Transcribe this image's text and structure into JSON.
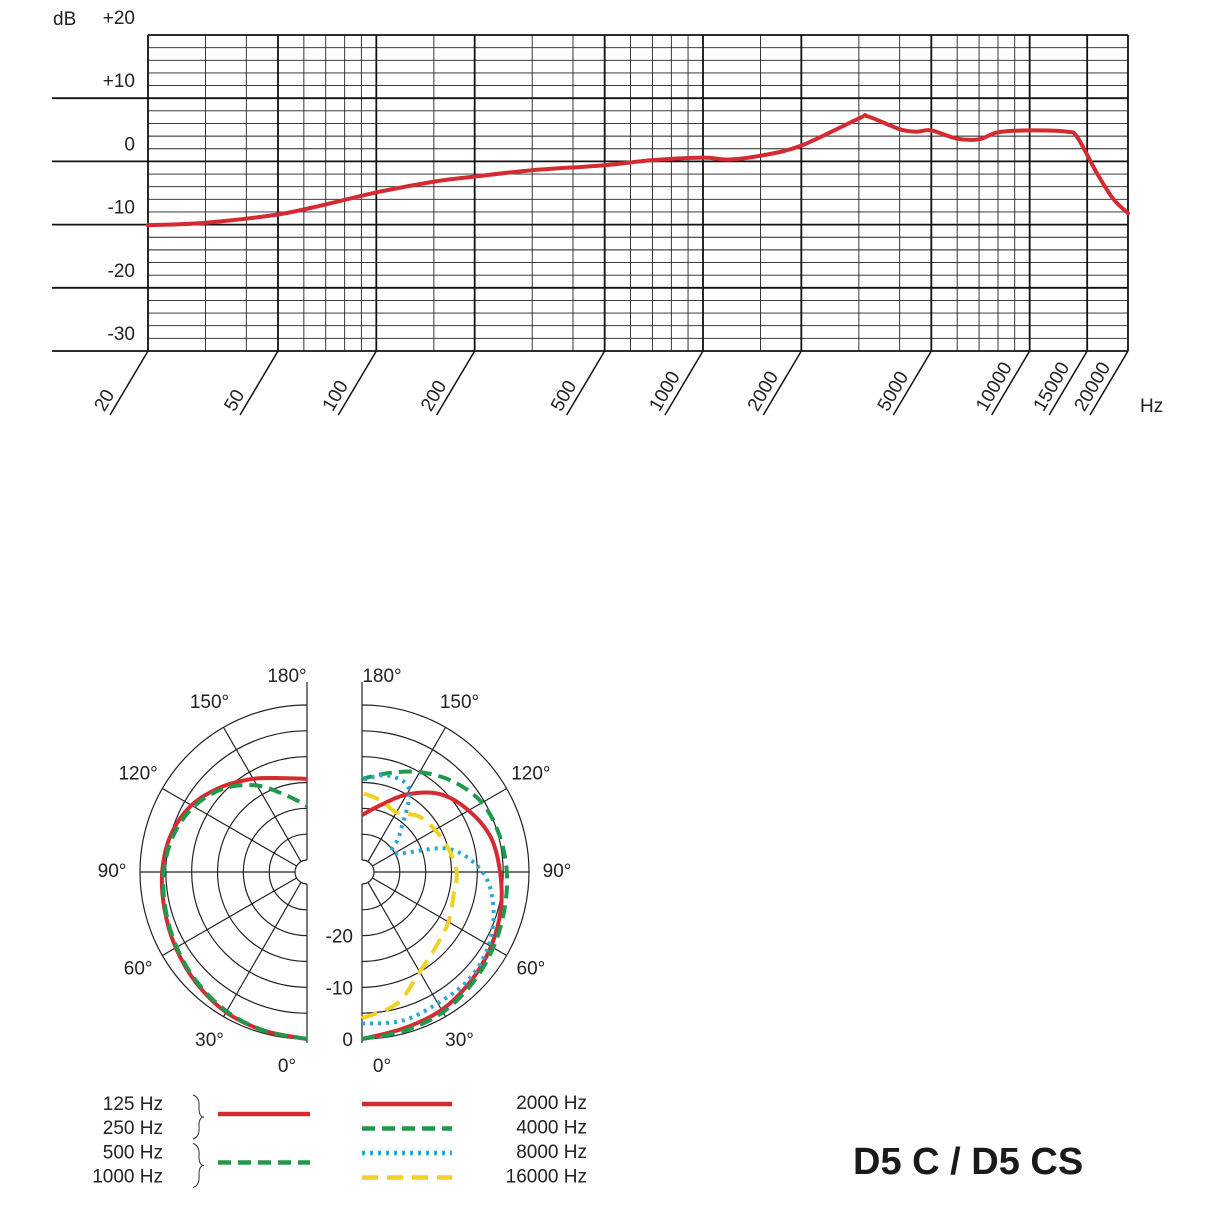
{
  "page": {
    "title": "D5 C / D5 CS"
  },
  "chart_data": [
    {
      "type": "line",
      "log_x": true,
      "ylabel": "dB",
      "xlabel": "Hz",
      "color": "#d42a32",
      "x": [
        20,
        30,
        50,
        70,
        100,
        150,
        200,
        300,
        500,
        700,
        1000,
        1200,
        1500,
        2000,
        3000,
        3200,
        4000,
        4500,
        5000,
        6000,
        7000,
        8000,
        10000,
        13000,
        14000,
        16000,
        18000,
        20000
      ],
      "values": [
        -10.1,
        -9.7,
        -8.4,
        -6.8,
        -4.9,
        -3.2,
        -2.4,
        -1.4,
        -0.6,
        0.2,
        0.6,
        0.3,
        0.9,
        2.5,
        6.8,
        7.1,
        5.1,
        4.7,
        4.9,
        3.6,
        3.5,
        4.6,
        4.9,
        4.7,
        3.8,
        -1.7,
        -5.9,
        -8.2
      ],
      "xlim": [
        20,
        20000
      ],
      "xticks": [
        20,
        50,
        100,
        200,
        500,
        1000,
        2000,
        5000,
        10000,
        15000,
        20000
      ],
      "xgrid_minor": [
        30,
        40,
        60,
        70,
        80,
        90,
        150,
        300,
        400,
        600,
        700,
        800,
        900,
        1500,
        3000,
        4000,
        6000,
        7000,
        8000,
        9000
      ],
      "ylim": [
        -30,
        20
      ],
      "yticks": [
        {
          "value": 20,
          "label": "+20"
        },
        {
          "value": 10,
          "label": "+10"
        },
        0,
        -10,
        -20,
        -30
      ],
      "ygrid_minor": [
        18,
        16,
        14,
        12,
        8,
        6,
        4,
        2,
        -2,
        -4,
        -6,
        -8,
        -12,
        -14,
        -16,
        -18,
        -22,
        -24,
        -26,
        -28
      ],
      "grid": true
    },
    {
      "type": "polar",
      "theta": [
        0,
        15,
        30,
        45,
        60,
        75,
        90,
        105,
        120,
        135,
        150,
        165,
        180
      ],
      "thetaticks": [
        {
          "value": 0,
          "label": "0°"
        },
        {
          "value": 30,
          "label": "30°"
        },
        {
          "value": 60,
          "label": "60°"
        },
        {
          "value": 90,
          "label": "90°"
        },
        {
          "value": 120,
          "label": "120°"
        },
        {
          "value": 150,
          "label": "150°"
        },
        {
          "value": 180,
          "label": "180°"
        }
      ],
      "rlim": [
        -30,
        0
      ],
      "rgrid": [
        0,
        -5,
        -10,
        -15,
        -20,
        -25,
        -30
      ],
      "subplots": [
        {
          "side": "left",
          "series": [
            {
              "names": [
                "125 Hz",
                "250 Hz"
              ],
              "color": "#d42a32",
              "style": "solid",
              "values": [
                0,
                -0.5,
                -1,
                -2,
                -3,
                -3.8,
                -4.3,
                -5,
                -6.5,
                -9,
                -11.5,
                -13.5,
                -14.3
              ]
            },
            {
              "names": [
                "500 Hz",
                "1000 Hz"
              ],
              "color": "#1f9a4c",
              "style": "dashed",
              "values": [
                0,
                -0.5,
                -1.2,
                -2.2,
                -3.2,
                -4,
                -4.6,
                -5.5,
                -7,
                -9.5,
                -13,
                -17,
                -19.5
              ]
            }
          ]
        },
        {
          "side": "right",
          "rticks": [
            0,
            -10,
            -20
          ],
          "series": [
            {
              "names": [
                "2000 Hz"
              ],
              "color": "#d42a32",
              "style": "solid",
              "values": [
                0,
                -1,
                -1.5,
                -2.5,
                -3.5,
                -4.5,
                -5.6,
                -6.5,
                -8.5,
                -11,
                -15,
                -19,
                -21.3
              ]
            },
            {
              "names": [
                "4000 Hz"
              ],
              "color": "#1f9a4c",
              "style": "dashed",
              "values": [
                0,
                -0.5,
                -1,
                -2,
                -3,
                -3.8,
                -4.3,
                -4.8,
                -5.5,
                -7.5,
                -10,
                -12.5,
                -14.3
              ]
            },
            {
              "names": [
                "8000 Hz"
              ],
              "color": "#2ba5d6",
              "style": "dotted",
              "values": [
                -3,
                -2.5,
                -3,
                -3,
                -4,
                -6,
                -9,
                -15,
                -25,
                -22,
                -14,
                -13,
                -14.5
              ]
            },
            {
              "names": [
                "16000 Hz"
              ],
              "color": "#f0d124",
              "style": "long-dashed",
              "values": [
                -4,
                -6,
                -10,
                -12,
                -13,
                -14,
                -14,
                -15,
                -16,
                -17,
                -19,
                -18,
                -17
              ]
            }
          ]
        }
      ]
    }
  ]
}
